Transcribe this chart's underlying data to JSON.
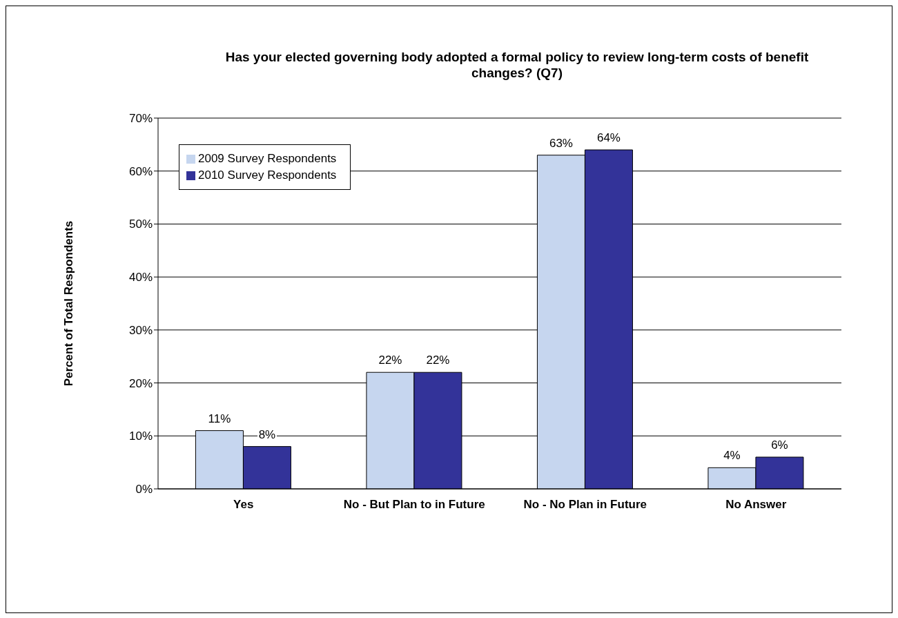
{
  "chart_data": {
    "type": "bar",
    "title": "Has your elected governing body adopted a formal policy to review long-term costs of benefit changes? (Q7)",
    "ylabel": "Percent of Total Respondents",
    "categories": [
      "Yes",
      "No - But Plan to in Future",
      "No - No Plan in Future",
      "No Answer"
    ],
    "series": [
      {
        "name": "2009 Survey Respondents",
        "color": "#c6d6ef",
        "values": [
          11,
          22,
          63,
          4
        ],
        "value_labels": [
          "11%",
          "22%",
          "63%",
          "4%"
        ]
      },
      {
        "name": "2010 Survey Respondents",
        "color": "#333399",
        "values": [
          8,
          22,
          64,
          6
        ],
        "value_labels": [
          "8%",
          "22%",
          "64%",
          "6%"
        ]
      }
    ],
    "ylim": [
      0,
      70
    ],
    "yticks": [
      {
        "value": 0,
        "label": "0%"
      },
      {
        "value": 10,
        "label": "10%"
      },
      {
        "value": 20,
        "label": "20%"
      },
      {
        "value": 30,
        "label": "30%"
      },
      {
        "value": 40,
        "label": "40%"
      },
      {
        "value": 50,
        "label": "50%"
      },
      {
        "value": 60,
        "label": "60%"
      },
      {
        "value": 70,
        "label": "70%"
      }
    ],
    "grid": "y",
    "legend": "top left"
  }
}
